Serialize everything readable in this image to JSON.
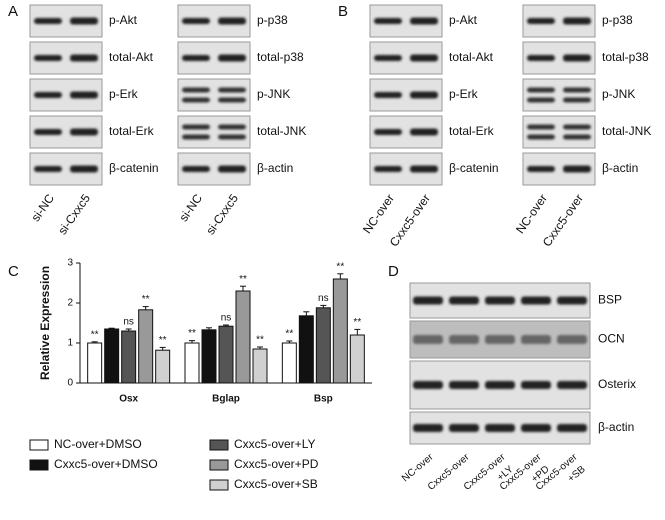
{
  "panel_labels": [
    "A",
    "B",
    "C",
    "D"
  ],
  "blots": [
    {
      "rows": [
        "p-Akt",
        "total-Akt",
        "p-Erk",
        "total-Erk",
        "β-catenin"
      ],
      "lanes": [
        "si-NC",
        "si-Cxxc5"
      ]
    },
    {
      "rows": [
        "p-p38",
        "total-p38",
        "p-JNK",
        "total-JNK",
        "β-actin"
      ],
      "lanes": [
        "si-NC",
        "si-Cxxc5"
      ]
    },
    {
      "rows": [
        "p-Akt",
        "total-Akt",
        "p-Erk",
        "total-Erk",
        "β-catenin"
      ],
      "lanes": [
        "NC-over",
        "Cxxc5-over"
      ]
    },
    {
      "rows": [
        "p-p38",
        "total-p38",
        "p-JNK",
        "total-JNK",
        "β-actin"
      ],
      "lanes": [
        "NC-over",
        "Cxxc5-over"
      ]
    }
  ],
  "blot_d": {
    "rows": [
      "BSP",
      "OCN",
      "Osterix",
      "β-actin"
    ],
    "lanes": [
      [
        "NC-over"
      ],
      [
        "Cxxc5-over"
      ],
      [
        "Cxxc5-over",
        "+LY"
      ],
      [
        "Cxxc5-over",
        "+PD"
      ],
      [
        "Cxxc5-over",
        "+SB"
      ]
    ]
  },
  "chart_data": {
    "type": "bar",
    "ylabel": "Relative Expression",
    "categories": [
      "Osx",
      "Bglap",
      "Bsp"
    ],
    "series": [
      {
        "name": "NC-over+DMSO",
        "color": "#ffffff",
        "values": [
          1.0,
          1.0,
          1.0
        ],
        "errors": [
          0.03,
          0.06,
          0.05
        ],
        "significance": [
          "**",
          "**",
          "**"
        ]
      },
      {
        "name": "Cxxc5-over+DMSO",
        "color": "#111111",
        "values": [
          1.35,
          1.33,
          1.68
        ],
        "errors": [
          0.02,
          0.05,
          0.1
        ],
        "significance": [
          null,
          null,
          null
        ]
      },
      {
        "name": "Cxxc5-over+LY",
        "color": "#555555",
        "values": [
          1.3,
          1.42,
          1.88
        ],
        "errors": [
          0.05,
          0.03,
          0.06
        ],
        "significance": [
          "ns",
          "ns",
          "ns"
        ]
      },
      {
        "name": "Cxxc5-over+PD",
        "color": "#999999",
        "values": [
          1.83,
          2.3,
          2.6
        ],
        "errors": [
          0.08,
          0.12,
          0.13
        ],
        "significance": [
          "**",
          "**",
          "**"
        ]
      },
      {
        "name": "Cxxc5-over+SB",
        "color": "#d0d0d0",
        "values": [
          0.82,
          0.85,
          1.2
        ],
        "errors": [
          0.07,
          0.05,
          0.14
        ],
        "significance": [
          "**",
          "**",
          "**"
        ]
      }
    ],
    "ylim": [
      0,
      3
    ],
    "yticks": [
      0,
      1,
      2,
      3
    ]
  }
}
